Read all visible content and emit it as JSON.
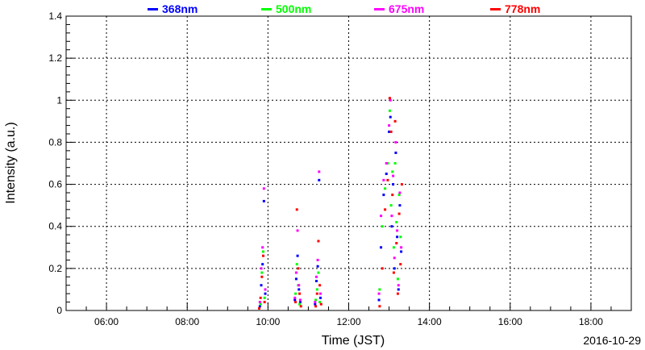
{
  "chart_data": {
    "type": "scatter",
    "title": "",
    "xlabel": "Time (JST)",
    "ylabel": "Intensity (a.u.)",
    "date": "2016-10-29",
    "xlim": [
      "05:00",
      "19:00"
    ],
    "ylim": [
      0,
      1.4
    ],
    "x_ticks": [
      "06:00",
      "08:00",
      "10:00",
      "12:00",
      "14:00",
      "16:00",
      "18:00"
    ],
    "y_ticks": [
      "0",
      "0.2",
      "0.4",
      "0.6",
      "0.8",
      "1",
      "1.2",
      "1.4"
    ],
    "grid": true,
    "legend_position": "top",
    "series": [
      {
        "name": "368nm",
        "color": "#0000ff",
        "points": [
          [
            "09:48",
            0.02
          ],
          [
            "09:50",
            0.12
          ],
          [
            "09:52",
            0.22
          ],
          [
            "09:54",
            0.52
          ],
          [
            "09:56",
            0.08
          ],
          [
            "10:40",
            0.05
          ],
          [
            "10:42",
            0.15
          ],
          [
            "10:44",
            0.26
          ],
          [
            "10:46",
            0.1
          ],
          [
            "10:48",
            0.04
          ],
          [
            "11:10",
            0.03
          ],
          [
            "11:12",
            0.14
          ],
          [
            "11:14",
            0.21
          ],
          [
            "11:16",
            0.62
          ],
          [
            "11:18",
            0.06
          ],
          [
            "12:45",
            0.05
          ],
          [
            "12:48",
            0.3
          ],
          [
            "12:52",
            0.55
          ],
          [
            "12:56",
            0.65
          ],
          [
            "13:00",
            0.85
          ],
          [
            "13:02",
            0.92
          ],
          [
            "13:04",
            0.4
          ],
          [
            "13:06",
            0.6
          ],
          [
            "13:08",
            0.2
          ],
          [
            "13:10",
            0.75
          ],
          [
            "13:12",
            0.35
          ],
          [
            "13:14",
            0.1
          ],
          [
            "13:16",
            0.5
          ],
          [
            "13:18",
            0.28
          ]
        ]
      },
      {
        "name": "500nm",
        "color": "#00ff00",
        "points": [
          [
            "09:49",
            0.03
          ],
          [
            "09:51",
            0.18
          ],
          [
            "09:53",
            0.28
          ],
          [
            "09:55",
            0.06
          ],
          [
            "10:41",
            0.08
          ],
          [
            "10:43",
            0.22
          ],
          [
            "10:45",
            0.12
          ],
          [
            "10:47",
            0.03
          ],
          [
            "11:11",
            0.05
          ],
          [
            "11:13",
            0.1
          ],
          [
            "11:15",
            0.18
          ],
          [
            "11:17",
            0.04
          ],
          [
            "12:46",
            0.1
          ],
          [
            "12:50",
            0.4
          ],
          [
            "12:54",
            0.58
          ],
          [
            "12:58",
            0.7
          ],
          [
            "13:01",
            0.95
          ],
          [
            "13:03",
            0.5
          ],
          [
            "13:05",
            0.66
          ],
          [
            "13:07",
            0.3
          ],
          [
            "13:09",
            0.7
          ],
          [
            "13:11",
            0.42
          ],
          [
            "13:13",
            0.15
          ],
          [
            "13:15",
            0.55
          ],
          [
            "13:17",
            0.35
          ]
        ]
      },
      {
        "name": "675nm",
        "color": "#ff00ff",
        "points": [
          [
            "09:48",
            0.04
          ],
          [
            "09:50",
            0.2
          ],
          [
            "09:52",
            0.3
          ],
          [
            "09:54",
            0.58
          ],
          [
            "09:56",
            0.1
          ],
          [
            "10:40",
            0.06
          ],
          [
            "10:42",
            0.18
          ],
          [
            "10:44",
            0.38
          ],
          [
            "10:46",
            0.12
          ],
          [
            "10:48",
            0.05
          ],
          [
            "11:10",
            0.04
          ],
          [
            "11:12",
            0.16
          ],
          [
            "11:14",
            0.24
          ],
          [
            "11:16",
            0.66
          ],
          [
            "11:18",
            0.08
          ],
          [
            "12:45",
            0.08
          ],
          [
            "12:48",
            0.45
          ],
          [
            "12:52",
            0.62
          ],
          [
            "12:56",
            0.7
          ],
          [
            "13:00",
            0.88
          ],
          [
            "13:02",
            1.0
          ],
          [
            "13:04",
            0.45
          ],
          [
            "13:06",
            0.64
          ],
          [
            "13:08",
            0.25
          ],
          [
            "13:10",
            0.8
          ],
          [
            "13:12",
            0.38
          ],
          [
            "13:14",
            0.12
          ],
          [
            "13:16",
            0.56
          ],
          [
            "13:18",
            0.3
          ]
        ]
      },
      {
        "name": "778nm",
        "color": "#ff0000",
        "points": [
          [
            "09:47",
            0.01
          ],
          [
            "09:49",
            0.06
          ],
          [
            "09:51",
            0.16
          ],
          [
            "09:53",
            0.26
          ],
          [
            "09:55",
            0.04
          ],
          [
            "10:41",
            0.04
          ],
          [
            "10:43",
            0.48
          ],
          [
            "10:45",
            0.2
          ],
          [
            "10:47",
            0.08
          ],
          [
            "10:49",
            0.02
          ],
          [
            "11:11",
            0.02
          ],
          [
            "11:13",
            0.08
          ],
          [
            "11:15",
            0.33
          ],
          [
            "11:17",
            0.12
          ],
          [
            "11:19",
            0.03
          ],
          [
            "12:46",
            0.02
          ],
          [
            "12:50",
            0.2
          ],
          [
            "12:54",
            0.48
          ],
          [
            "12:58",
            0.62
          ],
          [
            "13:01",
            1.01
          ],
          [
            "13:03",
            0.85
          ],
          [
            "13:05",
            0.55
          ],
          [
            "13:07",
            0.18
          ],
          [
            "13:09",
            0.9
          ],
          [
            "13:11",
            0.32
          ],
          [
            "13:13",
            0.08
          ],
          [
            "13:15",
            0.46
          ],
          [
            "13:17",
            0.22
          ],
          [
            "13:19",
            0.6
          ]
        ]
      }
    ]
  }
}
